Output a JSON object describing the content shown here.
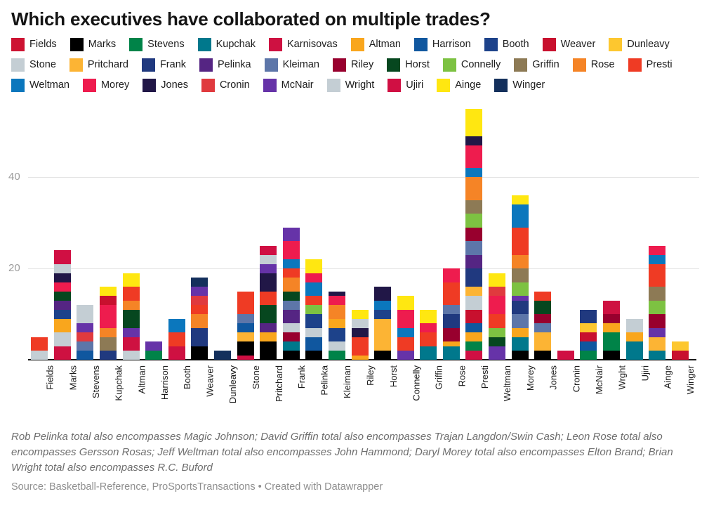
{
  "title": "Which executives have collaborated on multiple trades?",
  "notes": "Rob Pelinka total also encompasses Magic Johnson; David Griffin total also encompasses Trajan Langdon/Swin Cash; Leon Rose total also encompasses Gersson Rosas; Jeff Weltman total also encompasses John Hammond; Daryl Morey total also encompasses Elton Brand; Brian Wright total also encompasses R.C. Buford",
  "source": "Source: Basketball-Reference, ProSportsTransactions • Created with Datawrapper",
  "legend": {
    "items": [
      {
        "key": "fields",
        "label": "Fields"
      },
      {
        "key": "marks",
        "label": "Marks"
      },
      {
        "key": "stevens",
        "label": "Stevens"
      },
      {
        "key": "kupchak",
        "label": "Kupchak"
      },
      {
        "key": "karnisovas",
        "label": "Karnisovas"
      },
      {
        "key": "altman",
        "label": "Altman"
      },
      {
        "key": "harrison",
        "label": "Harrison"
      },
      {
        "key": "booth",
        "label": "Booth"
      },
      {
        "key": "weaver",
        "label": "Weaver"
      },
      {
        "key": "dunleavy",
        "label": "Dunleavy"
      },
      {
        "key": "stone",
        "label": "Stone"
      },
      {
        "key": "pritchard",
        "label": "Pritchard"
      },
      {
        "key": "frank",
        "label": "Frank"
      },
      {
        "key": "pelinka",
        "label": "Pelinka"
      },
      {
        "key": "kleiman",
        "label": "Kleiman"
      },
      {
        "key": "riley",
        "label": "Riley"
      },
      {
        "key": "horst",
        "label": "Horst"
      },
      {
        "key": "connelly",
        "label": "Connelly"
      },
      {
        "key": "griffin",
        "label": "Griffin"
      },
      {
        "key": "rose",
        "label": "Rose"
      },
      {
        "key": "presti",
        "label": "Presti"
      },
      {
        "key": "weltman",
        "label": "Weltman"
      },
      {
        "key": "morey",
        "label": "Morey"
      },
      {
        "key": "jones",
        "label": "Jones"
      },
      {
        "key": "cronin",
        "label": "Cronin"
      },
      {
        "key": "mcnair",
        "label": "McNair"
      },
      {
        "key": "wright",
        "label": "Wright"
      },
      {
        "key": "ujiri",
        "label": "Ujiri"
      },
      {
        "key": "ainge",
        "label": "Ainge"
      },
      {
        "key": "winger",
        "label": "Winger"
      }
    ]
  },
  "chart_data": {
    "type": "bar",
    "stacked": true,
    "title": "Which executives have collaborated on multiple trades?",
    "xlabel": "",
    "ylabel": "",
    "yticks": [
      20,
      40
    ],
    "ylim": [
      0,
      57
    ],
    "grid": true,
    "legend_position": "top",
    "palette": {
      "fields": "#cd1332",
      "marks": "#000000",
      "stevens": "#008348",
      "kupchak": "#00788c",
      "karnisovas": "#ce1141",
      "altman": "#f9a61d",
      "harrison": "#10579f",
      "booth": "#1d428a",
      "weaver": "#c8102e",
      "dunleavy": "#fdc72f",
      "stone": "#c4ced4",
      "pritchard": "#fcb434",
      "frank": "#20397f",
      "pelinka": "#552583",
      "kleiman": "#5d76a9",
      "riley": "#98002e",
      "horst": "#06471f",
      "connelly": "#7dc242",
      "griffin": "#8d7a55",
      "rose": "#f58426",
      "presti": "#ef3b24",
      "weltman": "#0b77bd",
      "morey": "#ee1c4e",
      "jones": "#211747",
      "cronin": "#e03a3e",
      "mcnair": "#6633a8",
      "wright": "#c4ced4",
      "ujiri": "#d00f43",
      "ainge": "#ffe711",
      "winger": "#14305c"
    },
    "categories": [
      "Fields",
      "Marks",
      "Stevens",
      "Kupchak",
      "Altman",
      "Harrison",
      "Booth",
      "Weaver",
      "Dunleavy",
      "Stone",
      "Pritchard",
      "Frank",
      "Pelinka",
      "Kleiman",
      "Riley",
      "Horst",
      "Connelly",
      "Griffin",
      "Rose",
      "Presti",
      "Weltman",
      "Morey",
      "Jones",
      "Cronin",
      "McNair",
      "Wrght",
      "Ujiri",
      "Ainge",
      "Winger"
    ],
    "bars": [
      {
        "name": "Fields",
        "total": 5,
        "segments": [
          [
            "stone",
            2
          ],
          [
            "presti",
            3
          ]
        ]
      },
      {
        "name": "Marks",
        "total": 24,
        "segments": [
          [
            "karnisovas",
            3
          ],
          [
            "stone",
            3
          ],
          [
            "altman",
            3
          ],
          [
            "booth",
            2
          ],
          [
            "pelinka",
            2
          ],
          [
            "horst",
            2
          ],
          [
            "morey",
            2
          ],
          [
            "jones",
            2
          ],
          [
            "wright",
            2
          ],
          [
            "ujiri",
            3
          ]
        ]
      },
      {
        "name": "Stevens",
        "total": 12,
        "segments": [
          [
            "harrison",
            2
          ],
          [
            "kleiman",
            2
          ],
          [
            "cronin",
            2
          ],
          [
            "mcnair",
            2
          ],
          [
            "stone",
            4
          ]
        ]
      },
      {
        "name": "Kupchak",
        "total": 16,
        "segments": [
          [
            "frank",
            2
          ],
          [
            "griffin",
            3
          ],
          [
            "rose",
            2
          ],
          [
            "morey",
            5
          ],
          [
            "weaver",
            2
          ],
          [
            "ainge",
            2
          ]
        ]
      },
      {
        "name": "Altman",
        "total": 19,
        "segments": [
          [
            "stone",
            2
          ],
          [
            "karnisovas",
            3
          ],
          [
            "mcnair",
            2
          ],
          [
            "horst",
            4
          ],
          [
            "rose",
            2
          ],
          [
            "presti",
            3
          ],
          [
            "ainge",
            3
          ]
        ]
      },
      {
        "name": "Harrison",
        "total": 4,
        "segments": [
          [
            "stevens",
            2
          ],
          [
            "mcnair",
            2
          ]
        ]
      },
      {
        "name": "Booth",
        "total": 9,
        "segments": [
          [
            "ujiri",
            1
          ],
          [
            "karnisovas",
            2
          ],
          [
            "presti",
            3
          ],
          [
            "weltman",
            3
          ]
        ]
      },
      {
        "name": "Weaver",
        "total": 18,
        "segments": [
          [
            "marks",
            3
          ],
          [
            "frank",
            4
          ],
          [
            "rose",
            3
          ],
          [
            "presti",
            2
          ],
          [
            "cronin",
            2
          ],
          [
            "mcnair",
            2
          ],
          [
            "winger",
            2
          ]
        ]
      },
      {
        "name": "Dunleavy",
        "total": 2,
        "segments": [
          [
            "winger",
            2
          ]
        ]
      },
      {
        "name": "Stone",
        "total": 15,
        "segments": [
          [
            "ujiri",
            1
          ],
          [
            "marks",
            3
          ],
          [
            "pritchard",
            2
          ],
          [
            "harrison",
            2
          ],
          [
            "kleiman",
            2
          ],
          [
            "presti",
            5
          ]
        ]
      },
      {
        "name": "Pritchard",
        "total": 25,
        "segments": [
          [
            "marks",
            4
          ],
          [
            "altman",
            2
          ],
          [
            "pelinka",
            2
          ],
          [
            "horst",
            4
          ],
          [
            "presti",
            3
          ],
          [
            "jones",
            4
          ],
          [
            "mcnair",
            2
          ],
          [
            "wright",
            2
          ],
          [
            "ujiri",
            2
          ]
        ]
      },
      {
        "name": "Frank",
        "total": 29,
        "segments": [
          [
            "marks",
            2
          ],
          [
            "kupchak",
            2
          ],
          [
            "riley",
            2
          ],
          [
            "stone",
            2
          ],
          [
            "pelinka",
            3
          ],
          [
            "kleiman",
            2
          ],
          [
            "horst",
            2
          ],
          [
            "rose",
            3
          ],
          [
            "presti",
            2
          ],
          [
            "weltman",
            2
          ],
          [
            "morey",
            4
          ],
          [
            "mcnair",
            3
          ]
        ]
      },
      {
        "name": "Pelinka",
        "total": 22,
        "segments": [
          [
            "marks",
            2
          ],
          [
            "harrison",
            3
          ],
          [
            "wright",
            2
          ],
          [
            "booth",
            3
          ],
          [
            "connelly",
            2
          ],
          [
            "presti",
            2
          ],
          [
            "weltman",
            3
          ],
          [
            "morey",
            2
          ],
          [
            "ainge",
            3
          ]
        ]
      },
      {
        "name": "Kleiman",
        "total": 15,
        "segments": [
          [
            "stevens",
            2
          ],
          [
            "stone",
            2
          ],
          [
            "booth",
            3
          ],
          [
            "altman",
            2
          ],
          [
            "rose",
            3
          ],
          [
            "morey",
            2
          ],
          [
            "jones",
            1
          ]
        ]
      },
      {
        "name": "Riley",
        "total": 11,
        "segments": [
          [
            "altman",
            1
          ],
          [
            "presti",
            4
          ],
          [
            "jones",
            2
          ],
          [
            "wright",
            2
          ],
          [
            "ainge",
            2
          ]
        ]
      },
      {
        "name": "Horst",
        "total": 16,
        "segments": [
          [
            "marks",
            2
          ],
          [
            "pritchard",
            7
          ],
          [
            "booth",
            2
          ],
          [
            "weltman",
            2
          ],
          [
            "jones",
            3
          ]
        ]
      },
      {
        "name": "Connelly",
        "total": 14,
        "segments": [
          [
            "mcnair",
            2
          ],
          [
            "presti",
            3
          ],
          [
            "weltman",
            2
          ],
          [
            "morey",
            4
          ],
          [
            "ainge",
            3
          ]
        ]
      },
      {
        "name": "Griffin",
        "total": 11,
        "segments": [
          [
            "kupchak",
            3
          ],
          [
            "presti",
            3
          ],
          [
            "morey",
            2
          ],
          [
            "ainge",
            3
          ]
        ]
      },
      {
        "name": "Rose",
        "total": 20,
        "segments": [
          [
            "kupchak",
            3
          ],
          [
            "altman",
            1
          ],
          [
            "riley",
            3
          ],
          [
            "frank",
            3
          ],
          [
            "kleiman",
            2
          ],
          [
            "presti",
            5
          ],
          [
            "morey",
            3
          ]
        ]
      },
      {
        "name": "Presti",
        "total": 55,
        "segments": [
          [
            "ujiri",
            2
          ],
          [
            "stevens",
            2
          ],
          [
            "altman",
            2
          ],
          [
            "harrison",
            2
          ],
          [
            "weaver",
            3
          ],
          [
            "stone",
            3
          ],
          [
            "pritchard",
            2
          ],
          [
            "frank",
            4
          ],
          [
            "pelinka",
            3
          ],
          [
            "kleiman",
            3
          ],
          [
            "riley",
            3
          ],
          [
            "connelly",
            3
          ],
          [
            "griffin",
            3
          ],
          [
            "rose",
            5
          ],
          [
            "weltman",
            2
          ],
          [
            "morey",
            5
          ],
          [
            "jones",
            2
          ],
          [
            "ainge",
            6
          ]
        ]
      },
      {
        "name": "Weltman",
        "total": 19,
        "segments": [
          [
            "mcnair",
            3
          ],
          [
            "horst",
            2
          ],
          [
            "connelly",
            2
          ],
          [
            "presti",
            3
          ],
          [
            "morey",
            4
          ],
          [
            "cronin",
            2
          ],
          [
            "ainge",
            3
          ]
        ]
      },
      {
        "name": "Morey",
        "total": 36,
        "segments": [
          [
            "marks",
            2
          ],
          [
            "kupchak",
            3
          ],
          [
            "altman",
            2
          ],
          [
            "kleiman",
            3
          ],
          [
            "frank",
            3
          ],
          [
            "mcnair",
            1
          ],
          [
            "connelly",
            3
          ],
          [
            "griffin",
            3
          ],
          [
            "rose",
            3
          ],
          [
            "presti",
            6
          ],
          [
            "weltman",
            5
          ],
          [
            "ainge",
            2
          ]
        ]
      },
      {
        "name": "Jones",
        "total": 15,
        "segments": [
          [
            "marks",
            2
          ],
          [
            "pritchard",
            4
          ],
          [
            "kleiman",
            2
          ],
          [
            "riley",
            2
          ],
          [
            "horst",
            3
          ],
          [
            "presti",
            2
          ]
        ]
      },
      {
        "name": "Cronin",
        "total": 2,
        "segments": [
          [
            "ujiri",
            2
          ]
        ]
      },
      {
        "name": "McNair",
        "total": 11,
        "segments": [
          [
            "stevens",
            2
          ],
          [
            "harrison",
            2
          ],
          [
            "weaver",
            2
          ],
          [
            "dunleavy",
            2
          ],
          [
            "frank",
            3
          ]
        ]
      },
      {
        "name": "Wrght",
        "total": 13,
        "segments": [
          [
            "marks",
            2
          ],
          [
            "stevens",
            4
          ],
          [
            "altman",
            2
          ],
          [
            "riley",
            2
          ],
          [
            "karnisovas",
            3
          ]
        ]
      },
      {
        "name": "Ujiri",
        "total": 9,
        "segments": [
          [
            "kupchak",
            4
          ],
          [
            "altman",
            2
          ],
          [
            "stone",
            3
          ]
        ]
      },
      {
        "name": "Ainge",
        "total": 25,
        "segments": [
          [
            "kupchak",
            2
          ],
          [
            "pritchard",
            3
          ],
          [
            "mcnair",
            2
          ],
          [
            "riley",
            3
          ],
          [
            "connelly",
            3
          ],
          [
            "griffin",
            3
          ],
          [
            "presti",
            5
          ],
          [
            "weltman",
            2
          ],
          [
            "morey",
            2
          ]
        ]
      },
      {
        "name": "Winger",
        "total": 4,
        "segments": [
          [
            "weaver",
            2
          ],
          [
            "dunleavy",
            2
          ]
        ]
      }
    ]
  }
}
